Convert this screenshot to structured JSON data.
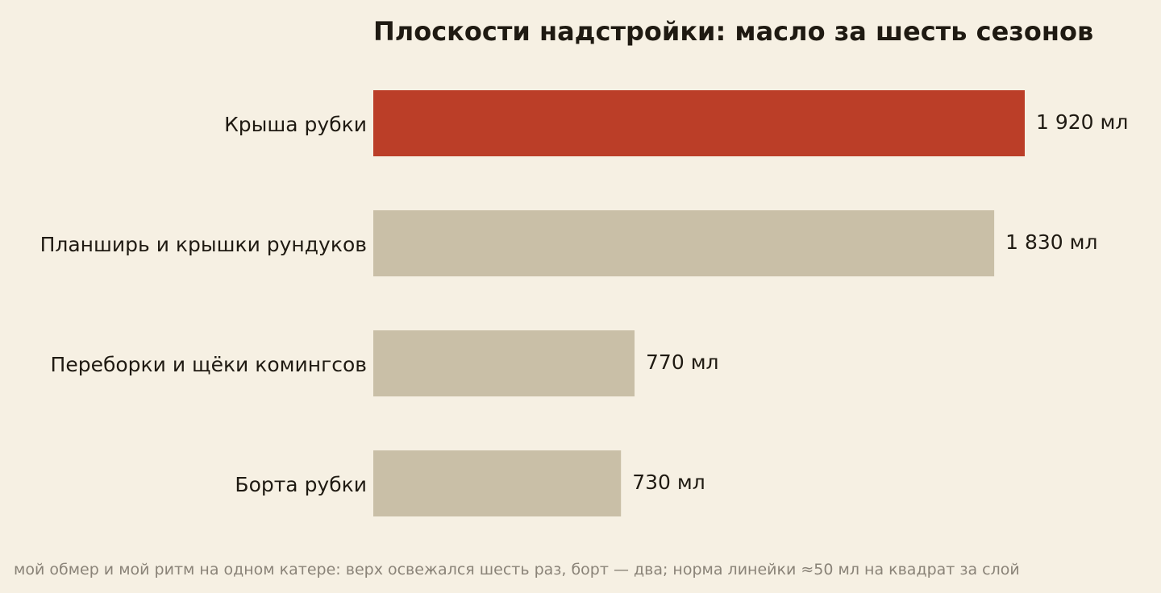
{
  "chart_data": {
    "type": "bar",
    "orientation": "horizontal",
    "title": "Плоскости надстройки: масло за шесть сезонов",
    "unit": "мл",
    "categories": [
      "Крыша рубки",
      "Планширь и крышки рундуков",
      "Переборки и щёки комингсов",
      "Борта рубки"
    ],
    "values": [
      1920,
      1830,
      770,
      730
    ],
    "value_labels": [
      "1 920 мл",
      "1 830 мл",
      "770 мл",
      "730 мл"
    ],
    "highlight_index": 0,
    "xlim": [
      0,
      1920
    ],
    "grid": false,
    "axes_visible": false,
    "colors": {
      "highlight": "#bb3e28",
      "default": "#c9bfa7",
      "background": "#f6f0e3",
      "text": "#1f1a12",
      "footnote": "#8a8378"
    },
    "footnote": "мой обмер и мой ритм на одном катере: верх освежался шесть раз, борт — два; норма линейки ≈50 мл на квадрат за слой"
  }
}
